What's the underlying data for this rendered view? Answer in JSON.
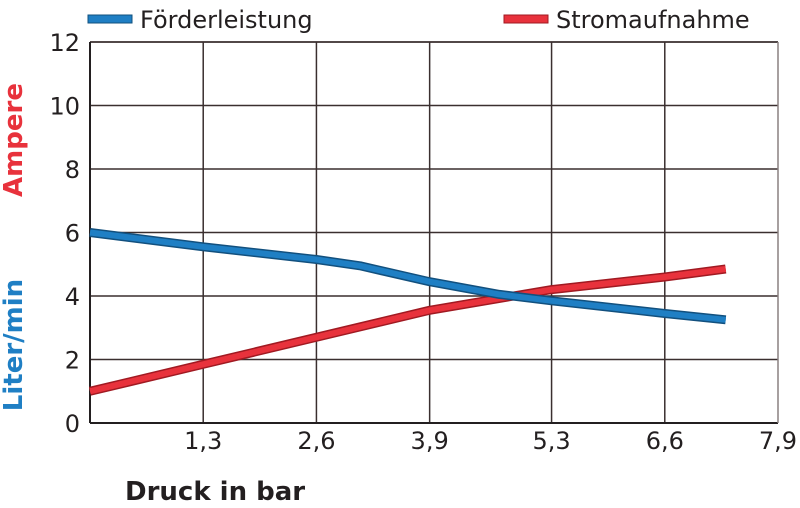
{
  "chart_data": {
    "type": "line",
    "xlabel": "Druck in bar",
    "ylabel_top": "Ampere",
    "ylabel_bottom": "Liter/min",
    "x_ticks": [
      "1,3",
      "2,6",
      "3,9",
      "5,3",
      "6,6",
      "7,9"
    ],
    "y_ticks": [
      "0",
      "2",
      "4",
      "6",
      "8",
      "10",
      "12"
    ],
    "xlim": [
      0,
      7.9
    ],
    "ylim": [
      0,
      12
    ],
    "grid": true,
    "legend_position": "top",
    "series": [
      {
        "name": "Förderleistung",
        "color": "#1f7fc4",
        "x": [
          0,
          1.3,
          2.6,
          3.1,
          3.9,
          4.7,
          5.3,
          6.6,
          7.3
        ],
        "y": [
          6.0,
          5.55,
          5.15,
          4.95,
          4.45,
          4.05,
          3.85,
          3.45,
          3.25
        ]
      },
      {
        "name": "Stromaufnahme",
        "color": "#e8323c",
        "x": [
          0,
          1.3,
          2.6,
          3.9,
          5.3,
          6.6,
          7.3
        ],
        "y": [
          1.0,
          1.85,
          2.7,
          3.55,
          4.2,
          4.6,
          4.85
        ]
      }
    ]
  }
}
